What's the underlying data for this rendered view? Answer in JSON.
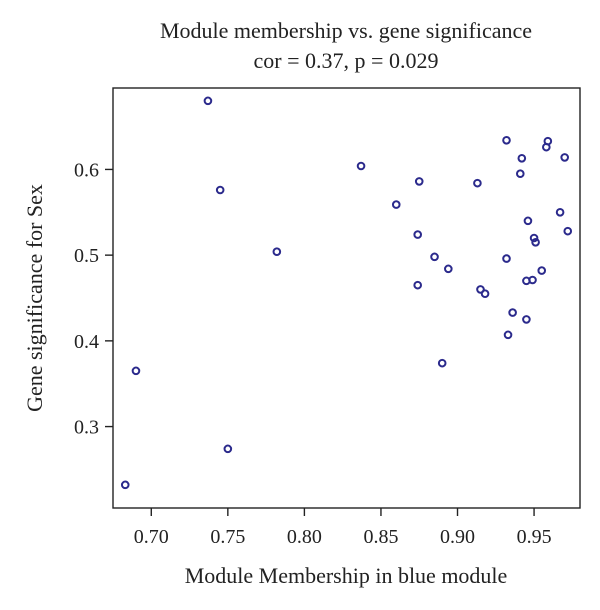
{
  "chart_data": {
    "type": "scatter",
    "title": "Module membership vs. gene significance",
    "subtitle": "cor = 0.37, p = 0.029",
    "xlabel": "Module Membership in blue module",
    "ylabel": "Gene significance for Sex",
    "xlim": [
      0.675,
      0.98
    ],
    "ylim": [
      0.205,
      0.695
    ],
    "x_ticks": [
      0.7,
      0.75,
      0.8,
      0.85,
      0.9,
      0.95
    ],
    "x_tick_labels": [
      "0.70",
      "0.75",
      "0.80",
      "0.85",
      "0.90",
      "0.95"
    ],
    "y_ticks": [
      0.3,
      0.4,
      0.5,
      0.6
    ],
    "y_tick_labels": [
      "0.3",
      "0.4",
      "0.5",
      "0.6"
    ],
    "grid": false,
    "marker": "open-circle",
    "point_color": "#2b2a8c",
    "points": [
      {
        "x": 0.737,
        "y": 0.68
      },
      {
        "x": 0.745,
        "y": 0.576
      },
      {
        "x": 0.782,
        "y": 0.504
      },
      {
        "x": 0.69,
        "y": 0.365
      },
      {
        "x": 0.75,
        "y": 0.274
      },
      {
        "x": 0.683,
        "y": 0.232
      },
      {
        "x": 0.837,
        "y": 0.604
      },
      {
        "x": 0.86,
        "y": 0.559
      },
      {
        "x": 0.875,
        "y": 0.586
      },
      {
        "x": 0.874,
        "y": 0.524
      },
      {
        "x": 0.874,
        "y": 0.465
      },
      {
        "x": 0.885,
        "y": 0.498
      },
      {
        "x": 0.894,
        "y": 0.484
      },
      {
        "x": 0.89,
        "y": 0.374
      },
      {
        "x": 0.913,
        "y": 0.584
      },
      {
        "x": 0.915,
        "y": 0.46
      },
      {
        "x": 0.918,
        "y": 0.455
      },
      {
        "x": 0.932,
        "y": 0.634
      },
      {
        "x": 0.932,
        "y": 0.496
      },
      {
        "x": 0.933,
        "y": 0.407
      },
      {
        "x": 0.936,
        "y": 0.433
      },
      {
        "x": 0.941,
        "y": 0.595
      },
      {
        "x": 0.942,
        "y": 0.613
      },
      {
        "x": 0.946,
        "y": 0.54
      },
      {
        "x": 0.945,
        "y": 0.47
      },
      {
        "x": 0.949,
        "y": 0.471
      },
      {
        "x": 0.945,
        "y": 0.425
      },
      {
        "x": 0.95,
        "y": 0.52
      },
      {
        "x": 0.951,
        "y": 0.515
      },
      {
        "x": 0.955,
        "y": 0.482
      },
      {
        "x": 0.958,
        "y": 0.626
      },
      {
        "x": 0.959,
        "y": 0.633
      },
      {
        "x": 0.967,
        "y": 0.55
      },
      {
        "x": 0.97,
        "y": 0.614
      },
      {
        "x": 0.972,
        "y": 0.528
      }
    ]
  }
}
